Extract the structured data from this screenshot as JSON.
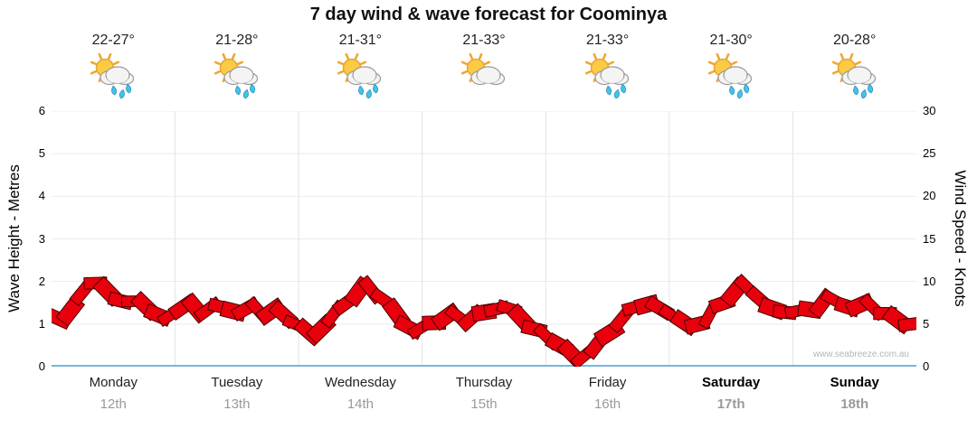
{
  "title": "7 day wind & wave forecast for Coominya",
  "watermark": "www.seabreeze.com.au",
  "days": [
    {
      "name": "Monday",
      "date": "12th",
      "temp": "22-27°",
      "icon": "partly-cloudy-rain",
      "weekend": false
    },
    {
      "name": "Tuesday",
      "date": "13th",
      "temp": "21-28°",
      "icon": "partly-cloudy-rain",
      "weekend": false
    },
    {
      "name": "Wednesday",
      "date": "14th",
      "temp": "21-31°",
      "icon": "partly-cloudy-rain",
      "weekend": false
    },
    {
      "name": "Thursday",
      "date": "15th",
      "temp": "21-33°",
      "icon": "partly-cloudy",
      "weekend": false
    },
    {
      "name": "Friday",
      "date": "16th",
      "temp": "21-33°",
      "icon": "partly-cloudy-rain",
      "weekend": false
    },
    {
      "name": "Saturday",
      "date": "17th",
      "temp": "21-30°",
      "icon": "partly-cloudy-rain",
      "weekend": true
    },
    {
      "name": "Sunday",
      "date": "18th",
      "temp": "20-28°",
      "icon": "partly-cloudy-rain",
      "weekend": true
    }
  ],
  "chart_data": {
    "type": "line",
    "style": "wind-flag-ribbon",
    "title": "7 day wind & wave forecast for Coominya",
    "x_axis": {
      "categories": [
        "Monday 12th",
        "Tuesday 13th",
        "Wednesday 14th",
        "Thursday 15th",
        "Friday 16th",
        "Saturday 17th",
        "Sunday 18th"
      ],
      "range_days": [
        0,
        7
      ],
      "points_per_day": 10
    },
    "y_left": {
      "label": "Wave Height - Metres",
      "range": [
        0,
        6
      ],
      "ticks": [
        0,
        1,
        2,
        3,
        4,
        5,
        6
      ]
    },
    "y_right": {
      "label": "Wind Speed - Knots",
      "range": [
        0,
        30
      ],
      "ticks": [
        0,
        5,
        10,
        15,
        20,
        25,
        30
      ]
    },
    "series": [
      {
        "name": "Wind Speed",
        "unit": "knots",
        "values": [
          6.0,
          5.5,
          7.5,
          10.2,
          9.4,
          8.2,
          7.4,
          7.8,
          6.6,
          5.4,
          6.8,
          7.2,
          6.5,
          7.1,
          6.8,
          6.4,
          7.0,
          6.3,
          6.6,
          5.6,
          4.4,
          3.6,
          5.4,
          6.8,
          8.2,
          9.4,
          8.6,
          7.2,
          5.2,
          4.2,
          4.8,
          5.6,
          6.1,
          5.5,
          6.0,
          6.6,
          7.1,
          6.4,
          5.0,
          3.8,
          3.2,
          2.0,
          0.9,
          1.8,
          3.2,
          4.8,
          6.4,
          7.5,
          7.1,
          6.5,
          5.6,
          4.6,
          5.4,
          6.8,
          8.0,
          9.6,
          8.8,
          7.2,
          6.3,
          6.6,
          6.4,
          7.0,
          8.0,
          7.4,
          6.8,
          7.5,
          6.6,
          5.8,
          5.2,
          4.8
        ]
      }
    ],
    "colors": {
      "flag_fill": "#e8000d",
      "flag_stroke": "#4a0000",
      "baseline": "#76b6d8",
      "grid": "#ebebeb",
      "day_grid": "#e4e4e4"
    },
    "legend": "none",
    "grid": "faint horizontal per metre, faint vertical per day"
  }
}
